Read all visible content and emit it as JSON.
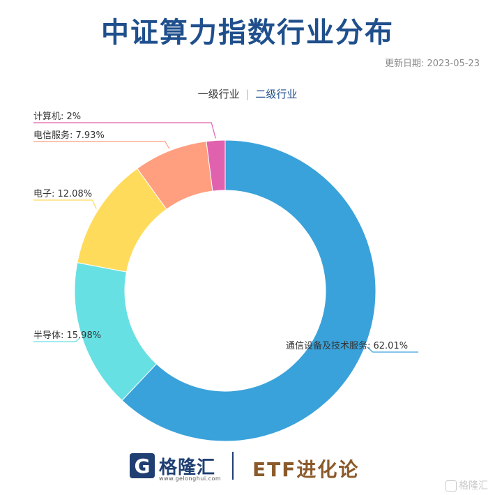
{
  "title": "中证算力指数行业分布",
  "update_date": "更新日期: 2023-05-23",
  "tabs": {
    "primary": "一级行业",
    "separator": "|",
    "secondary": "二级行业"
  },
  "chart_data": {
    "type": "pie",
    "donut": true,
    "slices": [
      {
        "label": "通信设备及技术服务",
        "value": 62.01,
        "display": "62.01%",
        "color": "#3aa2da"
      },
      {
        "label": "半导体",
        "value": 15.98,
        "display": "15.98%",
        "color": "#67e0e3"
      },
      {
        "label": "电子",
        "value": 12.08,
        "display": "12.08%",
        "color": "#ffdb5c"
      },
      {
        "label": "电信服务",
        "value": 7.93,
        "display": "7.93%",
        "color": "#ff9f7f"
      },
      {
        "label": "计算机",
        "value": 2,
        "display": "2%",
        "color": "#e062ae"
      }
    ]
  },
  "footer": {
    "brand": "格隆汇",
    "url": "www.gelonghui.com",
    "logo_letter": "G",
    "tagline": "ETF进化论"
  },
  "watermark": "格隆汇"
}
